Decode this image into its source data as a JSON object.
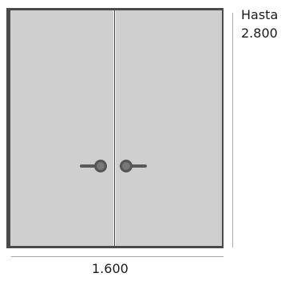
{
  "dimensions": {
    "width_label": "1.600",
    "height_label_prefix": "Hasta",
    "height_label_value": "2.800"
  },
  "colors": {
    "frame": "#4a4a4a",
    "leaf": "#d0cfcf",
    "handle": "#4f4f4f",
    "dimension_line": "#a8a8a8",
    "text": "#1a1a1a"
  },
  "icons": {
    "left_handle": "door-handle-icon",
    "right_handle": "door-handle-icon"
  }
}
